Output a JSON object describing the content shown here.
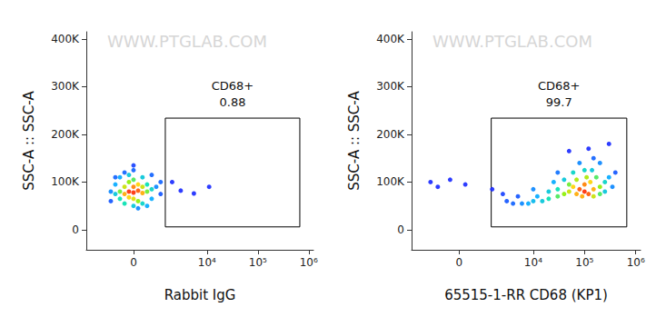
{
  "chart_data": [
    {
      "type": "scatter",
      "x_label": "Rabbit IgG",
      "y_label": "SSC-A :: SSC-A",
      "watermark": "WWW.PTGLAB.COM",
      "xlim": [
        -3000,
        1240000
      ],
      "xticks": [
        0,
        {
          "value": 10000,
          "label": "10⁴"
        },
        {
          "value": 100000,
          "label": "10⁵"
        },
        {
          "value": 1000000,
          "label": "10⁶"
        }
      ],
      "ylim": [
        -42000,
        415000
      ],
      "yticks": [
        0,
        {
          "value": 100000,
          "label": "100K"
        },
        {
          "value": 200000,
          "label": "200K"
        },
        {
          "value": 300000,
          "label": "300K"
        },
        {
          "value": 400000,
          "label": "400K"
        }
      ],
      "grid": false,
      "gate": {
        "label": "CD68+",
        "percent": 0.88,
        "x": [
          1430,
          668000
        ],
        "y": [
          6000,
          234000
        ]
      },
      "x": [
        -150,
        0,
        150,
        -300,
        300,
        0,
        -150,
        150,
        0,
        -300,
        300,
        -470,
        470,
        -150,
        150,
        0,
        -470,
        470,
        -660,
        660,
        -300,
        300,
        0,
        -150,
        300,
        -660,
        660,
        -875,
        875,
        -470,
        470,
        0,
        150,
        -300,
        1120,
        1120,
        -875,
        660,
        -660,
        0,
        3000,
        5500,
        11000,
        2000
      ],
      "values": [
        80000,
        78000,
        82000,
        75000,
        77000,
        90000,
        68000,
        95000,
        65000,
        90000,
        90000,
        80000,
        80000,
        100000,
        60000,
        105000,
        65000,
        95000,
        75000,
        85000,
        55000,
        55000,
        50000,
        115000,
        110000,
        95000,
        65000,
        80000,
        90000,
        110000,
        50000,
        125000,
        45000,
        120000,
        100000,
        75000,
        60000,
        115000,
        110000,
        135000,
        82000,
        76000,
        90000,
        100000
      ],
      "density": [
        1,
        1,
        0.95,
        0.85,
        0.85,
        0.9,
        0.8,
        0.8,
        0.75,
        0.7,
        0.7,
        0.55,
        0.55,
        0.6,
        0.6,
        0.5,
        0.4,
        0.4,
        0.3,
        0.35,
        0.4,
        0.35,
        0.3,
        0.3,
        0.3,
        0.2,
        0.2,
        0.15,
        0.15,
        0.2,
        0.2,
        0.1,
        0.15,
        0.1,
        0.1,
        0.08,
        0.08,
        0.1,
        0.1,
        0.05,
        0.02,
        0.02,
        0.02,
        0.02
      ],
      "density_lim": [
        0,
        1
      ],
      "colors": [
        "#1a1aff",
        "#00a8ff",
        "#00e0b0",
        "#8cf000",
        "#ffd200",
        "#ff2a00"
      ]
    },
    {
      "type": "scatter",
      "x_label": "65515-1-RR CD68 (KP1)",
      "y_label": "SSC-A :: SSC-A",
      "watermark": "WWW.PTGLAB.COM",
      "xlim": [
        -3000,
        1240000
      ],
      "xticks": [
        0,
        {
          "value": 10000,
          "label": "10⁴"
        },
        {
          "value": 100000,
          "label": "10⁵"
        },
        {
          "value": 1000000,
          "label": "10⁶"
        }
      ],
      "ylim": [
        -42000,
        415000
      ],
      "yticks": [
        0,
        {
          "value": 100000,
          "label": "100K"
        },
        {
          "value": 200000,
          "label": "200K"
        },
        {
          "value": 300000,
          "label": "300K"
        },
        {
          "value": 400000,
          "label": "400K"
        }
      ],
      "grid": false,
      "gate": {
        "label": "CD68+",
        "percent": 99.7,
        "x": [
          1430,
          668000
        ],
        "y": [
          6000,
          234000
        ]
      },
      "x": [
        100000,
        80000,
        120000,
        100000,
        70000,
        150000,
        60000,
        130000,
        90000,
        150000,
        50000,
        200000,
        110000,
        40000,
        70000,
        200000,
        170000,
        30000,
        50000,
        250000,
        20000,
        30000,
        100000,
        140000,
        250000,
        15000,
        20000,
        300000,
        60000,
        40000,
        10000,
        12000,
        8000,
        6000,
        4000,
        3000,
        10000,
        25000,
        350000,
        200000,
        80000,
        400000,
        150000,
        30000,
        5000,
        2500,
        300000,
        50000,
        120000,
        -300,
        -800,
        200,
        -1200,
        1500
      ],
      "values": [
        80000,
        85000,
        75000,
        95000,
        75000,
        85000,
        90000,
        100000,
        70000,
        70000,
        80000,
        90000,
        110000,
        75000,
        105000,
        75000,
        110000,
        70000,
        95000,
        100000,
        65000,
        85000,
        125000,
        125000,
        80000,
        60000,
        80000,
        110000,
        120000,
        105000,
        60000,
        70000,
        55000,
        55000,
        55000,
        60000,
        85000,
        100000,
        90000,
        140000,
        140000,
        120000,
        150000,
        120000,
        70000,
        75000,
        180000,
        165000,
        170000,
        105000,
        90000,
        95000,
        100000,
        85000
      ],
      "density": [
        1,
        0.95,
        0.95,
        0.9,
        0.85,
        0.85,
        0.8,
        0.8,
        0.85,
        0.7,
        0.7,
        0.6,
        0.65,
        0.6,
        0.65,
        0.5,
        0.5,
        0.5,
        0.55,
        0.35,
        0.4,
        0.4,
        0.35,
        0.3,
        0.3,
        0.3,
        0.3,
        0.2,
        0.35,
        0.3,
        0.25,
        0.2,
        0.2,
        0.15,
        0.1,
        0.08,
        0.15,
        0.2,
        0.15,
        0.15,
        0.15,
        0.08,
        0.1,
        0.12,
        0.08,
        0.05,
        0.02,
        0.02,
        0.02,
        0.02,
        0.02,
        0.02,
        0.02,
        0.02
      ],
      "density_lim": [
        0,
        1
      ],
      "colors": [
        "#1a1aff",
        "#00a8ff",
        "#00e0b0",
        "#8cf000",
        "#ffd200",
        "#ff2a00"
      ]
    }
  ]
}
